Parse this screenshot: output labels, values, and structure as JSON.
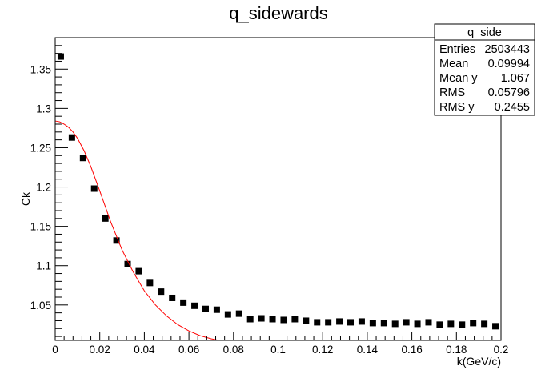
{
  "chart_data": {
    "type": "scatter",
    "title": "q_sidewards",
    "xlabel": "k(GeV/c)",
    "ylabel": "Ck",
    "xlim": [
      0,
      0.2
    ],
    "ylim": [
      1.005,
      1.39
    ],
    "x_ticks": [
      "0",
      "0.02",
      "0.04",
      "0.06",
      "0.08",
      "0.1",
      "0.12",
      "0.14",
      "0.16",
      "0.18",
      "0.2"
    ],
    "y_ticks": [
      "1.05",
      "1.1",
      "1.15",
      "1.2",
      "1.25",
      "1.3",
      "1.35"
    ],
    "grid": false,
    "series": [
      {
        "kind": "points",
        "marker": "square",
        "color": "#000000",
        "x": [
          0.0025,
          0.0075,
          0.0125,
          0.0175,
          0.0225,
          0.0275,
          0.0325,
          0.0375,
          0.0425,
          0.0475,
          0.0525,
          0.0575,
          0.0625,
          0.0675,
          0.0725,
          0.0775,
          0.0825,
          0.0875,
          0.0925,
          0.0975,
          0.1025,
          0.1075,
          0.1125,
          0.1175,
          0.1225,
          0.1275,
          0.1325,
          0.1375,
          0.1425,
          0.1475,
          0.1525,
          0.1575,
          0.1625,
          0.1675,
          0.1725,
          0.1775,
          0.1825,
          0.1875,
          0.1925,
          0.1975
        ],
        "y": [
          1.366,
          1.263,
          1.237,
          1.198,
          1.16,
          1.132,
          1.102,
          1.093,
          1.078,
          1.067,
          1.059,
          1.053,
          1.049,
          1.045,
          1.044,
          1.038,
          1.039,
          1.032,
          1.033,
          1.032,
          1.031,
          1.032,
          1.03,
          1.028,
          1.028,
          1.029,
          1.028,
          1.029,
          1.027,
          1.027,
          1.026,
          1.028,
          1.026,
          1.028,
          1.025,
          1.026,
          1.025,
          1.027,
          1.026,
          1.023
        ]
      },
      {
        "kind": "fit-line",
        "color": "#ff0000",
        "x": [
          0.0,
          0.002,
          0.004,
          0.006,
          0.008,
          0.01,
          0.013,
          0.016,
          0.02,
          0.025,
          0.03,
          0.035,
          0.04,
          0.045,
          0.05,
          0.055,
          0.06,
          0.065,
          0.07,
          0.0735
        ],
        "y": [
          1.284,
          1.283,
          1.28,
          1.276,
          1.27,
          1.262,
          1.246,
          1.226,
          1.195,
          1.155,
          1.12,
          1.092,
          1.068,
          1.05,
          1.036,
          1.025,
          1.017,
          1.011,
          1.007,
          1.005
        ]
      }
    ],
    "legend": "top-right",
    "stats_box": {
      "title": "q_side",
      "rows": [
        {
          "label": "Entries",
          "value": "2503443"
        },
        {
          "label": "Mean",
          "value": "0.09994"
        },
        {
          "label": "Mean y",
          "value": "1.067"
        },
        {
          "label": "RMS",
          "value": "0.05796"
        },
        {
          "label": "RMS y",
          "value": "0.2455"
        }
      ]
    }
  }
}
